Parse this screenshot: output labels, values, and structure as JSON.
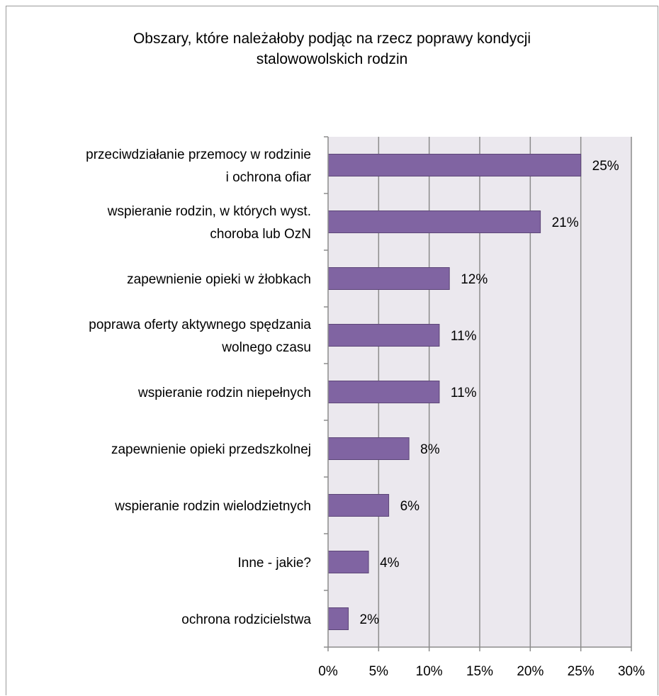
{
  "chart_data": {
    "type": "bar",
    "orientation": "horizontal",
    "title_lines": [
      "Obszary, które należałoby podjąc na rzecz poprawy kondycji",
      "stalowowolskich rodzin"
    ],
    "categories": [
      [
        "przeciwdziałanie przemocy w rodzinie",
        "i ochrona ofiar"
      ],
      [
        "wspieranie rodzin, w których wyst.",
        "choroba lub OzN"
      ],
      [
        "zapewnienie opieki w żłobkach"
      ],
      [
        "poprawa oferty aktywnego spędzania",
        "wolnego czasu"
      ],
      [
        "wspieranie rodzin niepełnych"
      ],
      [
        "zapewnienie opieki przedszkolnej"
      ],
      [
        "wspieranie rodzin wielodzietnych"
      ],
      [
        "Inne - jakie?"
      ],
      [
        "ochrona rodzicielstwa"
      ]
    ],
    "values": [
      25,
      21,
      12,
      11,
      11,
      8,
      6,
      4,
      2
    ],
    "value_labels": [
      "25%",
      "21%",
      "12%",
      "11%",
      "11%",
      "8%",
      "6%",
      "4%",
      "2%"
    ],
    "xlim": [
      0,
      30
    ],
    "xticks": [
      0,
      5,
      10,
      15,
      20,
      25,
      30
    ],
    "xtick_labels": [
      "0%",
      "5%",
      "10%",
      "15%",
      "20%",
      "25%",
      "30%"
    ],
    "grid": "vertical",
    "legend": "none",
    "colors": {
      "bar_fill": "#8064a2",
      "bar_stroke": "#5c4577",
      "plot_bg": "#ebe8ee",
      "grid": "#8c8c8c",
      "axis": "#8c8c8c"
    }
  }
}
